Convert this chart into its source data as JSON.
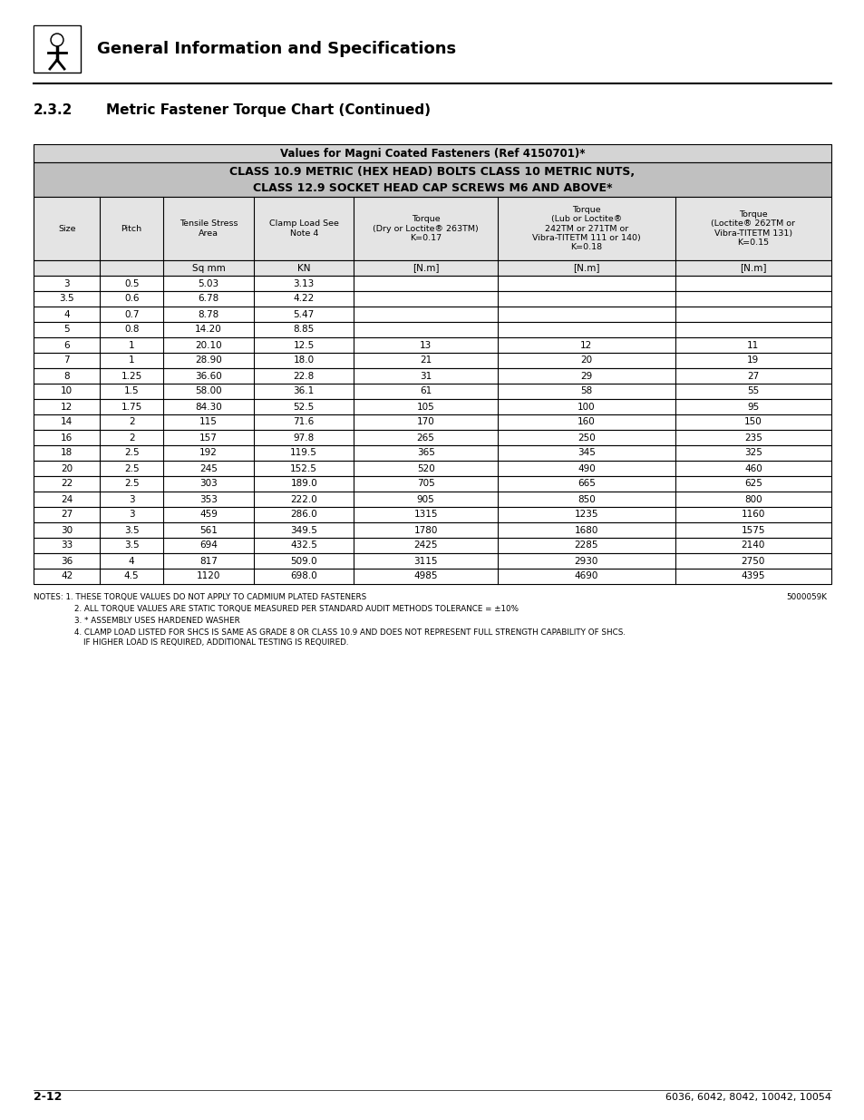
{
  "page_title": "General Information and Specifications",
  "section": "2.3.2",
  "section_title": "Metric Fastener Torque Chart (Continued)",
  "table_title1": "Values for Magni Coated Fasteners (Ref 4150701)*",
  "table_title2": "CLASS 10.9 METRIC (HEX HEAD) BOLTS CLASS 10 METRIC NUTS,",
  "table_title3": "CLASS 12.9 SOCKET HEAD CAP SCREWS M6 AND ABOVE*",
  "col_units": [
    "",
    "",
    "Sq mm",
    "KN",
    "[N.m]",
    "[N.m]",
    "[N.m]"
  ],
  "rows": [
    [
      "3",
      "0.5",
      "5.03",
      "3.13",
      "",
      "",
      ""
    ],
    [
      "3.5",
      "0.6",
      "6.78",
      "4.22",
      "",
      "",
      ""
    ],
    [
      "4",
      "0.7",
      "8.78",
      "5.47",
      "",
      "",
      ""
    ],
    [
      "5",
      "0.8",
      "14.20",
      "8.85",
      "",
      "",
      ""
    ],
    [
      "6",
      "1",
      "20.10",
      "12.5",
      "13",
      "12",
      "11"
    ],
    [
      "7",
      "1",
      "28.90",
      "18.0",
      "21",
      "20",
      "19"
    ],
    [
      "8",
      "1.25",
      "36.60",
      "22.8",
      "31",
      "29",
      "27"
    ],
    [
      "10",
      "1.5",
      "58.00",
      "36.1",
      "61",
      "58",
      "55"
    ],
    [
      "12",
      "1.75",
      "84.30",
      "52.5",
      "105",
      "100",
      "95"
    ],
    [
      "14",
      "2",
      "115",
      "71.6",
      "170",
      "160",
      "150"
    ],
    [
      "16",
      "2",
      "157",
      "97.8",
      "265",
      "250",
      "235"
    ],
    [
      "18",
      "2.5",
      "192",
      "119.5",
      "365",
      "345",
      "325"
    ],
    [
      "20",
      "2.5",
      "245",
      "152.5",
      "520",
      "490",
      "460"
    ],
    [
      "22",
      "2.5",
      "303",
      "189.0",
      "705",
      "665",
      "625"
    ],
    [
      "24",
      "3",
      "353",
      "222.0",
      "905",
      "850",
      "800"
    ],
    [
      "27",
      "3",
      "459",
      "286.0",
      "1315",
      "1235",
      "1160"
    ],
    [
      "30",
      "3.5",
      "561",
      "349.5",
      "1780",
      "1680",
      "1575"
    ],
    [
      "33",
      "3.5",
      "694",
      "432.5",
      "2425",
      "2285",
      "2140"
    ],
    [
      "36",
      "4",
      "817",
      "509.0",
      "3115",
      "2930",
      "2750"
    ],
    [
      "42",
      "4.5",
      "1120",
      "698.0",
      "4985",
      "4690",
      "4395"
    ]
  ],
  "ref_number": "5000059K",
  "footer_left": "2-12",
  "footer_right": "6036, 6042, 8042, 10042, 10054",
  "note1": "NOTES: 1. THESE TORQUE VALUES DO NOT APPLY TO CADMIUM PLATED FASTENERS",
  "note2": "2. ALL TORQUE VALUES ARE STATIC TORQUE MEASURED PER STANDARD AUDIT METHODS TOLERANCE = ±10%",
  "note3": "3. * ASSEMBLY USES HARDENED WASHER",
  "note4a": "4. CLAMP LOAD LISTED FOR SHCS IS SAME AS GRADE 8 OR CLASS 10.9 AND DOES NOT REPRESENT FULL STRENGTH CAPABILITY OF SHCS.",
  "note4b": "IF HIGHER LOAD IS REQUIRED, ADDITIONAL TESTING IS REQUIRED.",
  "light_gray": "#d4d4d4",
  "mid_gray": "#c0c0c0",
  "col_hdr_bg": "#e4e4e4",
  "white": "#ffffff",
  "black": "#000000"
}
